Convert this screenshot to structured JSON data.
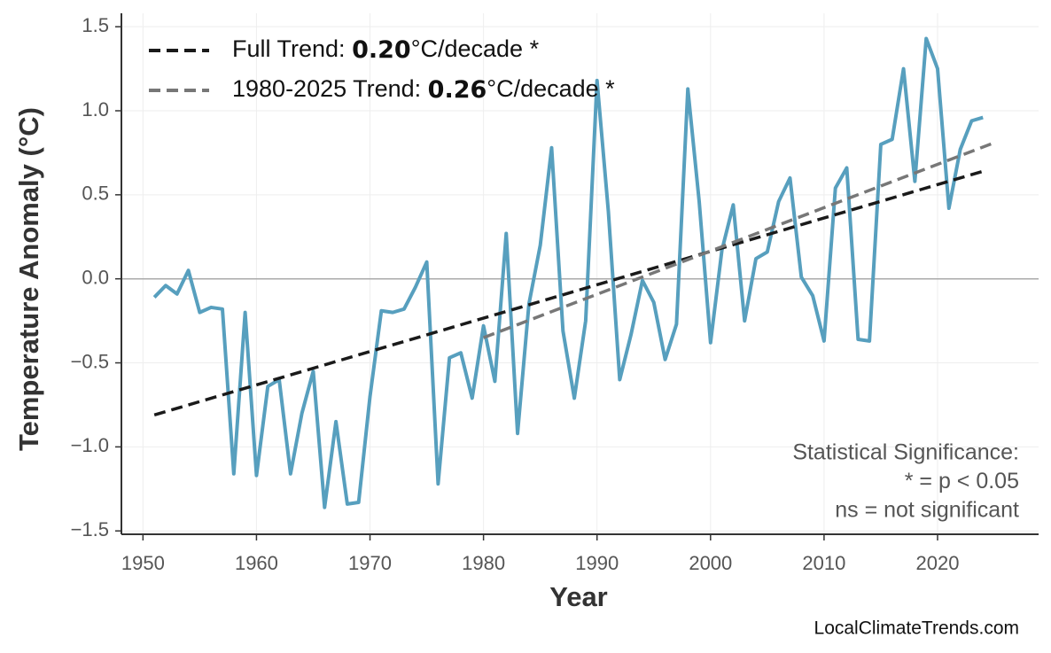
{
  "chart_data": {
    "type": "line",
    "x_label": "Year",
    "y_label": "Temperature Anomaly (°C)",
    "x": [
      1951,
      1952,
      1953,
      1954,
      1955,
      1956,
      1957,
      1958,
      1959,
      1960,
      1961,
      1962,
      1963,
      1964,
      1965,
      1966,
      1967,
      1968,
      1969,
      1970,
      1971,
      1972,
      1973,
      1974,
      1975,
      1976,
      1977,
      1978,
      1979,
      1980,
      1981,
      1982,
      1983,
      1984,
      1985,
      1986,
      1987,
      1988,
      1989,
      1990,
      1991,
      1992,
      1993,
      1994,
      1995,
      1996,
      1997,
      1998,
      1999,
      2000,
      2001,
      2002,
      2003,
      2004,
      2005,
      2006,
      2007,
      2008,
      2009,
      2010,
      2011,
      2012,
      2013,
      2014,
      2015,
      2016,
      2017,
      2018,
      2019,
      2020,
      2021,
      2022,
      2023,
      2024
    ],
    "values": [
      -0.11,
      -0.04,
      -0.09,
      0.05,
      -0.2,
      -0.17,
      -0.18,
      -1.16,
      -0.2,
      -1.17,
      -0.64,
      -0.6,
      -1.16,
      -0.8,
      -0.55,
      -1.36,
      -0.85,
      -1.34,
      -1.33,
      -0.7,
      -0.19,
      -0.2,
      -0.18,
      -0.05,
      0.1,
      -1.22,
      -0.47,
      -0.44,
      -0.71,
      -0.28,
      -0.61,
      0.27,
      -0.92,
      -0.15,
      0.2,
      0.78,
      -0.31,
      -0.71,
      -0.25,
      1.18,
      0.4,
      -0.6,
      -0.33,
      -0.01,
      -0.14,
      -0.48,
      -0.27,
      1.13,
      0.46,
      -0.38,
      0.17,
      0.44,
      -0.25,
      0.12,
      0.16,
      0.46,
      0.6,
      0.01,
      -0.1,
      -0.37,
      0.54,
      0.66,
      -0.36,
      -0.37,
      0.8,
      0.83,
      1.25,
      0.58,
      1.43,
      1.25,
      0.42,
      0.77,
      0.94,
      0.96
    ],
    "color": "#579fbe",
    "trends": [
      {
        "name_prefix": "Full Trend: ",
        "slope": "0.20",
        "name_suffix": "°C/decade *",
        "color": "#1a1a1a",
        "x": [
          1951,
          2024
        ],
        "values": [
          -0.81,
          0.64
        ]
      },
      {
        "name_prefix": "1980-2025 Trend: ",
        "slope": "0.26",
        "name_suffix": "°C/decade *",
        "color": "#777777",
        "x": [
          1980,
          2025
        ],
        "values": [
          -0.35,
          0.81
        ]
      }
    ],
    "xlim": [
      1948.1,
      2028.9
    ],
    "ylim": [
      -1.52,
      1.58
    ],
    "xticks": [
      1950,
      1960,
      1970,
      1980,
      1990,
      2000,
      2010,
      2020
    ],
    "yticks": [
      {
        "value": -1.5,
        "label": "−1.5"
      },
      {
        "value": -1.0,
        "label": "−1.0"
      },
      {
        "value": -0.5,
        "label": "−0.5"
      },
      {
        "value": 0,
        "label": "0.0"
      },
      0.5,
      {
        "value": 1.0,
        "label": "1.0"
      },
      1.5
    ],
    "zero_line": 0,
    "grid": true,
    "legend": "upper left",
    "annotation": [
      "Statistical Significance:",
      "* = p < 0.05",
      "ns = not significant"
    ],
    "source": "LocalClimateTrends.com"
  }
}
